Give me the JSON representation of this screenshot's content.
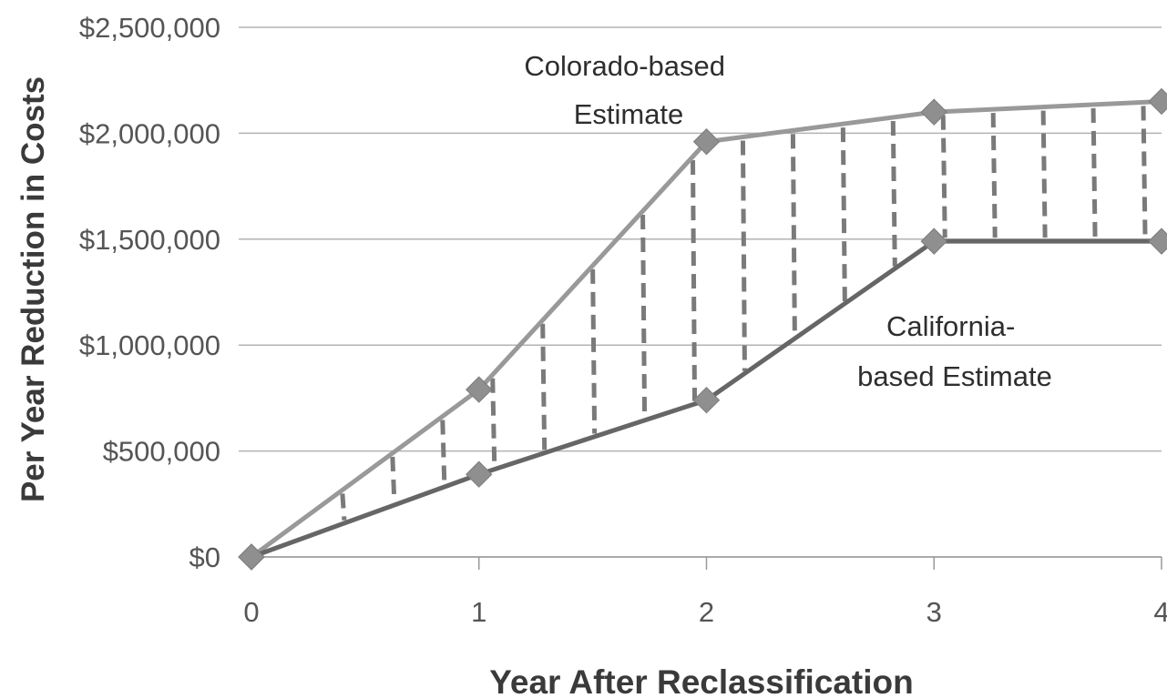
{
  "chart_data": {
    "type": "line",
    "title": "",
    "xlabel": "Year After Reclassification",
    "ylabel": "Per Year Reduction in Costs",
    "x": [
      0,
      1,
      2,
      3,
      4
    ],
    "x_tick_labels": [
      "0",
      "1",
      "2",
      "3",
      "4"
    ],
    "y_tick_labels": [
      "$0",
      "$500,000",
      "$1,000,000",
      "$1,500,000",
      "$2,000,000",
      "$2,500,000"
    ],
    "y_ticks": [
      0,
      500000,
      1000000,
      1500000,
      2000000,
      2500000
    ],
    "ylim": [
      0,
      2500000
    ],
    "xlim": [
      0,
      4
    ],
    "grid": "horizontal",
    "legend": "none",
    "series": [
      {
        "name": "Colorado-based Estimate",
        "values": [
          0,
          790000,
          1960000,
          2100000,
          2150000
        ],
        "color": "#999999"
      },
      {
        "name": "California-based Estimate",
        "values": [
          0,
          390000,
          740000,
          1490000,
          1490000
        ],
        "color": "#666666"
      }
    ],
    "annotations": [
      {
        "id": "colorado",
        "lines": [
          "Colorado-based",
          "Estimate"
        ]
      },
      {
        "id": "california",
        "lines": [
          "California-",
          "based Estimate"
        ]
      }
    ],
    "band_hatch_color": "#7a7a7a",
    "marker": "diamond"
  }
}
